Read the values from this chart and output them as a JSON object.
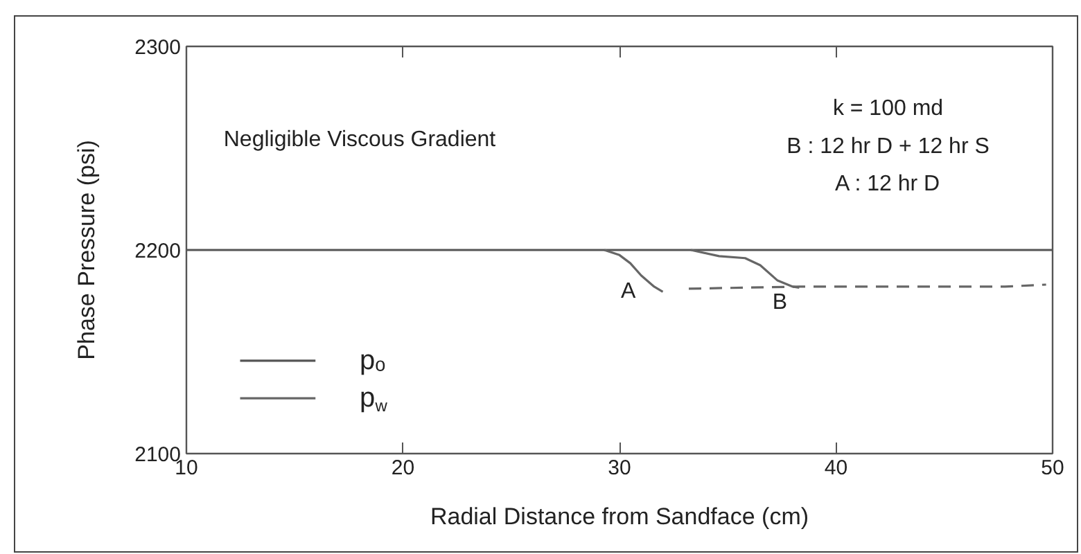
{
  "chart_data": {
    "type": "line",
    "xlabel": "Radial Distance from Sandface (cm)",
    "ylabel": "Phase Pressure (psi)",
    "xlim": [
      10,
      50
    ],
    "ylim": [
      2100,
      2300
    ],
    "xticks": [
      10,
      20,
      30,
      40,
      50
    ],
    "yticks": [
      2100,
      2200,
      2300
    ],
    "legend": "bottom left",
    "series": [
      {
        "name": "pₒ",
        "color": "#555555",
        "x": [
          10,
          50
        ],
        "values": [
          2200,
          2200
        ]
      },
      {
        "name": "p$_{w}$",
        "color": "#666666",
        "x": [
          29.3,
          30.0,
          30.5,
          31.0,
          31.6,
          32.0,
          32.7,
          33.3,
          34.6,
          35.8,
          36.5,
          37.3,
          38.0,
          38.3
        ],
        "values": [
          2200,
          2197.5,
          2193.5,
          2187.5,
          2182,
          2179.5,
          null,
          2200,
          2197,
          2196,
          2192.5,
          2185,
          2182,
          2181.5
        ]
      },
      {
        "color": "#666666",
        "line_style": "dashed",
        "x": [
          33.2,
          38.3,
          47.8,
          49.7
        ],
        "values": [
          2181,
          2182,
          2182,
          2183
        ]
      }
    ],
    "annotations": [
      "Negligible Viscous Gradient",
      "k = 100 md",
      "B : 12 hr D + 12 hr S",
      "A : 12 hr D",
      {
        "text": "A",
        "x": 31.0,
        "y": 2187.5
      },
      {
        "text": "B",
        "x": 38.0,
        "y": 2182
      }
    ]
  }
}
